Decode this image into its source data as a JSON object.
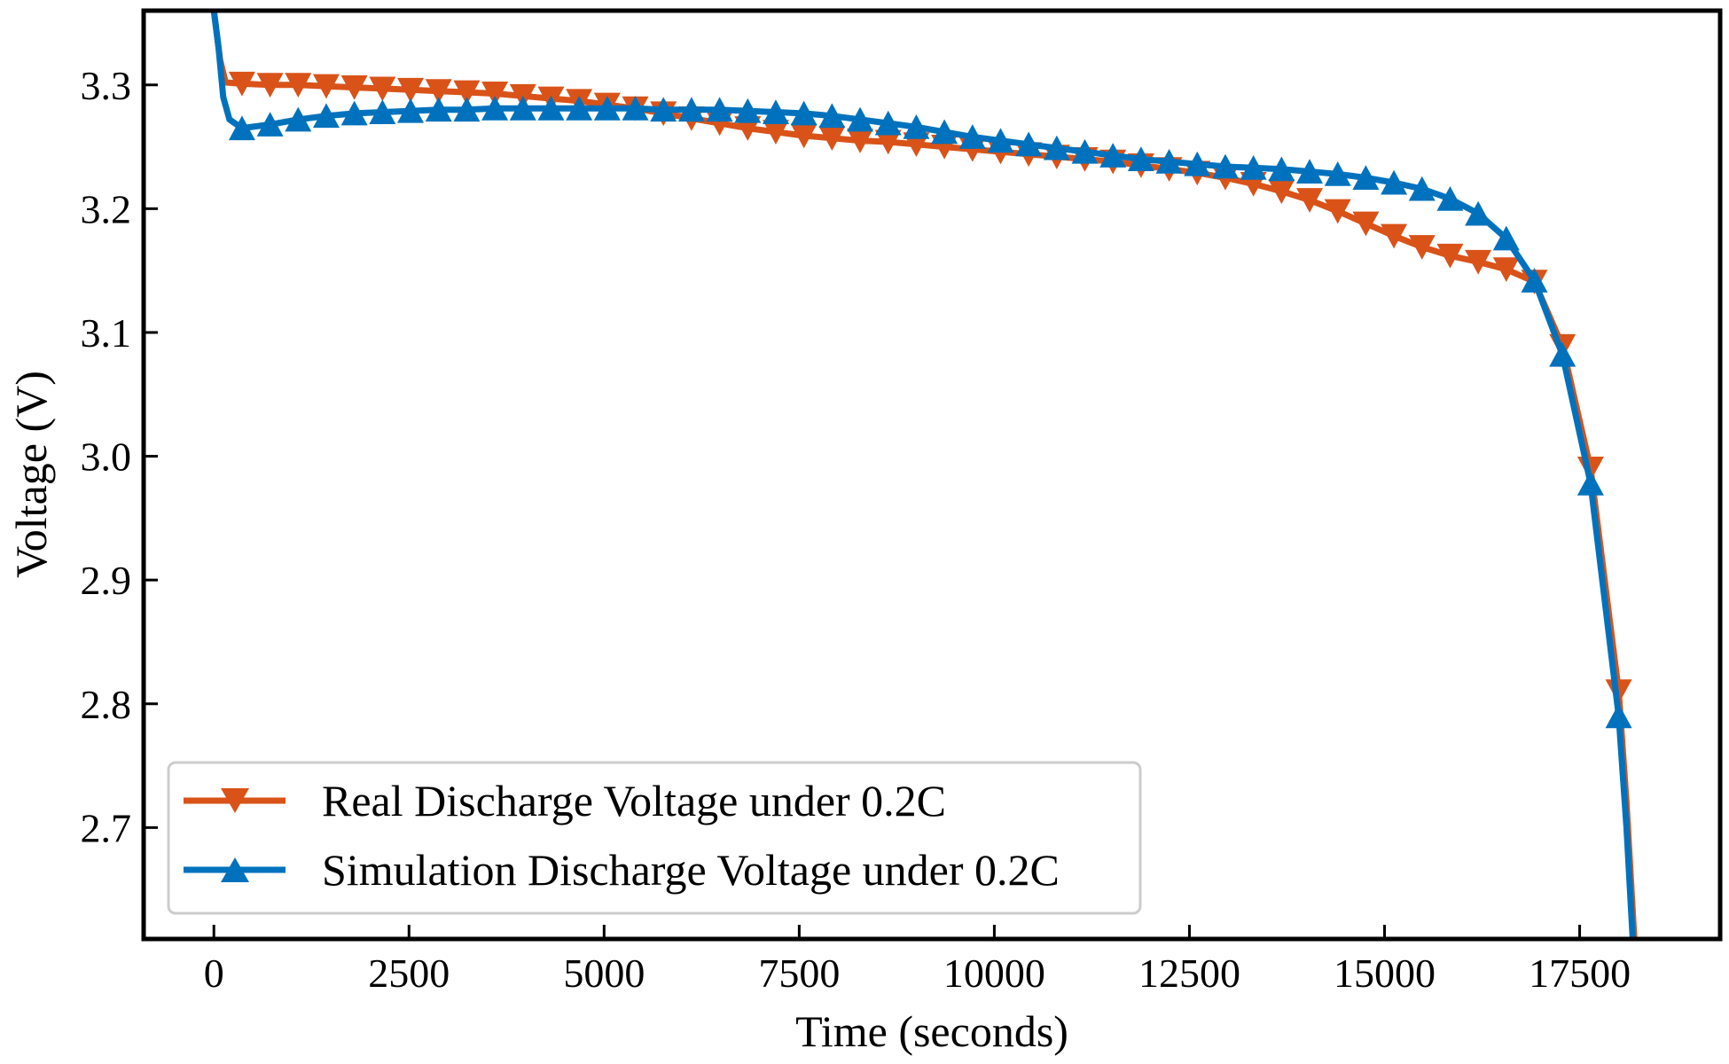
{
  "chart_data": {
    "type": "line",
    "title": "",
    "xlabel": "Time (seconds)",
    "ylabel": "Voltage (V)",
    "xlim": [
      -900,
      19300
    ],
    "ylim": [
      2.61,
      3.36
    ],
    "xticks": [
      0,
      2500,
      5000,
      7500,
      10000,
      12500,
      15000,
      17500
    ],
    "xtick_labels": [
      "0",
      "2500",
      "5000",
      "7500",
      "10000",
      "12500",
      "15000",
      "17500"
    ],
    "yticks": [
      2.7,
      2.8,
      2.9,
      3.0,
      3.1,
      3.2,
      3.3
    ],
    "ytick_labels": [
      "2.7",
      "2.8",
      "2.9",
      "3.0",
      "3.1",
      "3.2",
      "3.3"
    ],
    "grid": false,
    "legend_position": "bottom-left",
    "series": [
      {
        "name": "Real Discharge Voltage under 0.2C",
        "color": "#d95319",
        "marker": "triangle-down",
        "x": [
          0,
          80,
          150,
          360,
          720,
          1080,
          1440,
          1800,
          2160,
          2520,
          2880,
          3240,
          3600,
          3960,
          4320,
          4680,
          5040,
          5400,
          5760,
          6120,
          6480,
          6840,
          7200,
          7560,
          7920,
          8280,
          8640,
          9000,
          9360,
          9720,
          10080,
          10440,
          10800,
          11160,
          11520,
          11880,
          12240,
          12600,
          12960,
          13320,
          13680,
          14040,
          14400,
          14760,
          15120,
          15480,
          15840,
          16200,
          16560,
          16920,
          17280,
          17640,
          18000,
          18100,
          18200
        ],
        "y": [
          3.36,
          3.32,
          3.302,
          3.301,
          3.3,
          3.3,
          3.299,
          3.298,
          3.297,
          3.296,
          3.295,
          3.294,
          3.293,
          3.291,
          3.289,
          3.287,
          3.284,
          3.281,
          3.277,
          3.273,
          3.269,
          3.265,
          3.262,
          3.259,
          3.257,
          3.255,
          3.254,
          3.252,
          3.25,
          3.248,
          3.246,
          3.244,
          3.242,
          3.24,
          3.238,
          3.235,
          3.232,
          3.229,
          3.225,
          3.22,
          3.214,
          3.207,
          3.198,
          3.188,
          3.178,
          3.169,
          3.162,
          3.157,
          3.151,
          3.141,
          3.089,
          2.99,
          2.81,
          2.72,
          2.61
        ]
      },
      {
        "name": "Simulation Discharge Voltage under 0.2C",
        "color": "#0072bd",
        "marker": "triangle-up",
        "x": [
          0,
          60,
          120,
          200,
          360,
          720,
          1080,
          1440,
          1800,
          2160,
          2520,
          2880,
          3240,
          3600,
          3960,
          4320,
          4680,
          5040,
          5400,
          5760,
          6120,
          6480,
          6840,
          7200,
          7560,
          7920,
          8280,
          8640,
          9000,
          9360,
          9720,
          10080,
          10440,
          10800,
          11160,
          11520,
          11880,
          12240,
          12600,
          12960,
          13320,
          13680,
          14040,
          14400,
          14760,
          15120,
          15480,
          15840,
          16200,
          16560,
          16920,
          17280,
          17640,
          18000,
          18100,
          18180
        ],
        "y": [
          3.36,
          3.33,
          3.29,
          3.272,
          3.265,
          3.268,
          3.272,
          3.275,
          3.277,
          3.278,
          3.279,
          3.28,
          3.28,
          3.281,
          3.281,
          3.281,
          3.281,
          3.281,
          3.281,
          3.28,
          3.28,
          3.28,
          3.279,
          3.278,
          3.277,
          3.275,
          3.272,
          3.269,
          3.266,
          3.262,
          3.258,
          3.255,
          3.252,
          3.249,
          3.246,
          3.243,
          3.24,
          3.238,
          3.236,
          3.234,
          3.233,
          3.232,
          3.23,
          3.228,
          3.225,
          3.221,
          3.216,
          3.208,
          3.196,
          3.176,
          3.142,
          3.082,
          2.978,
          2.79,
          2.7,
          2.61
        ]
      }
    ]
  }
}
